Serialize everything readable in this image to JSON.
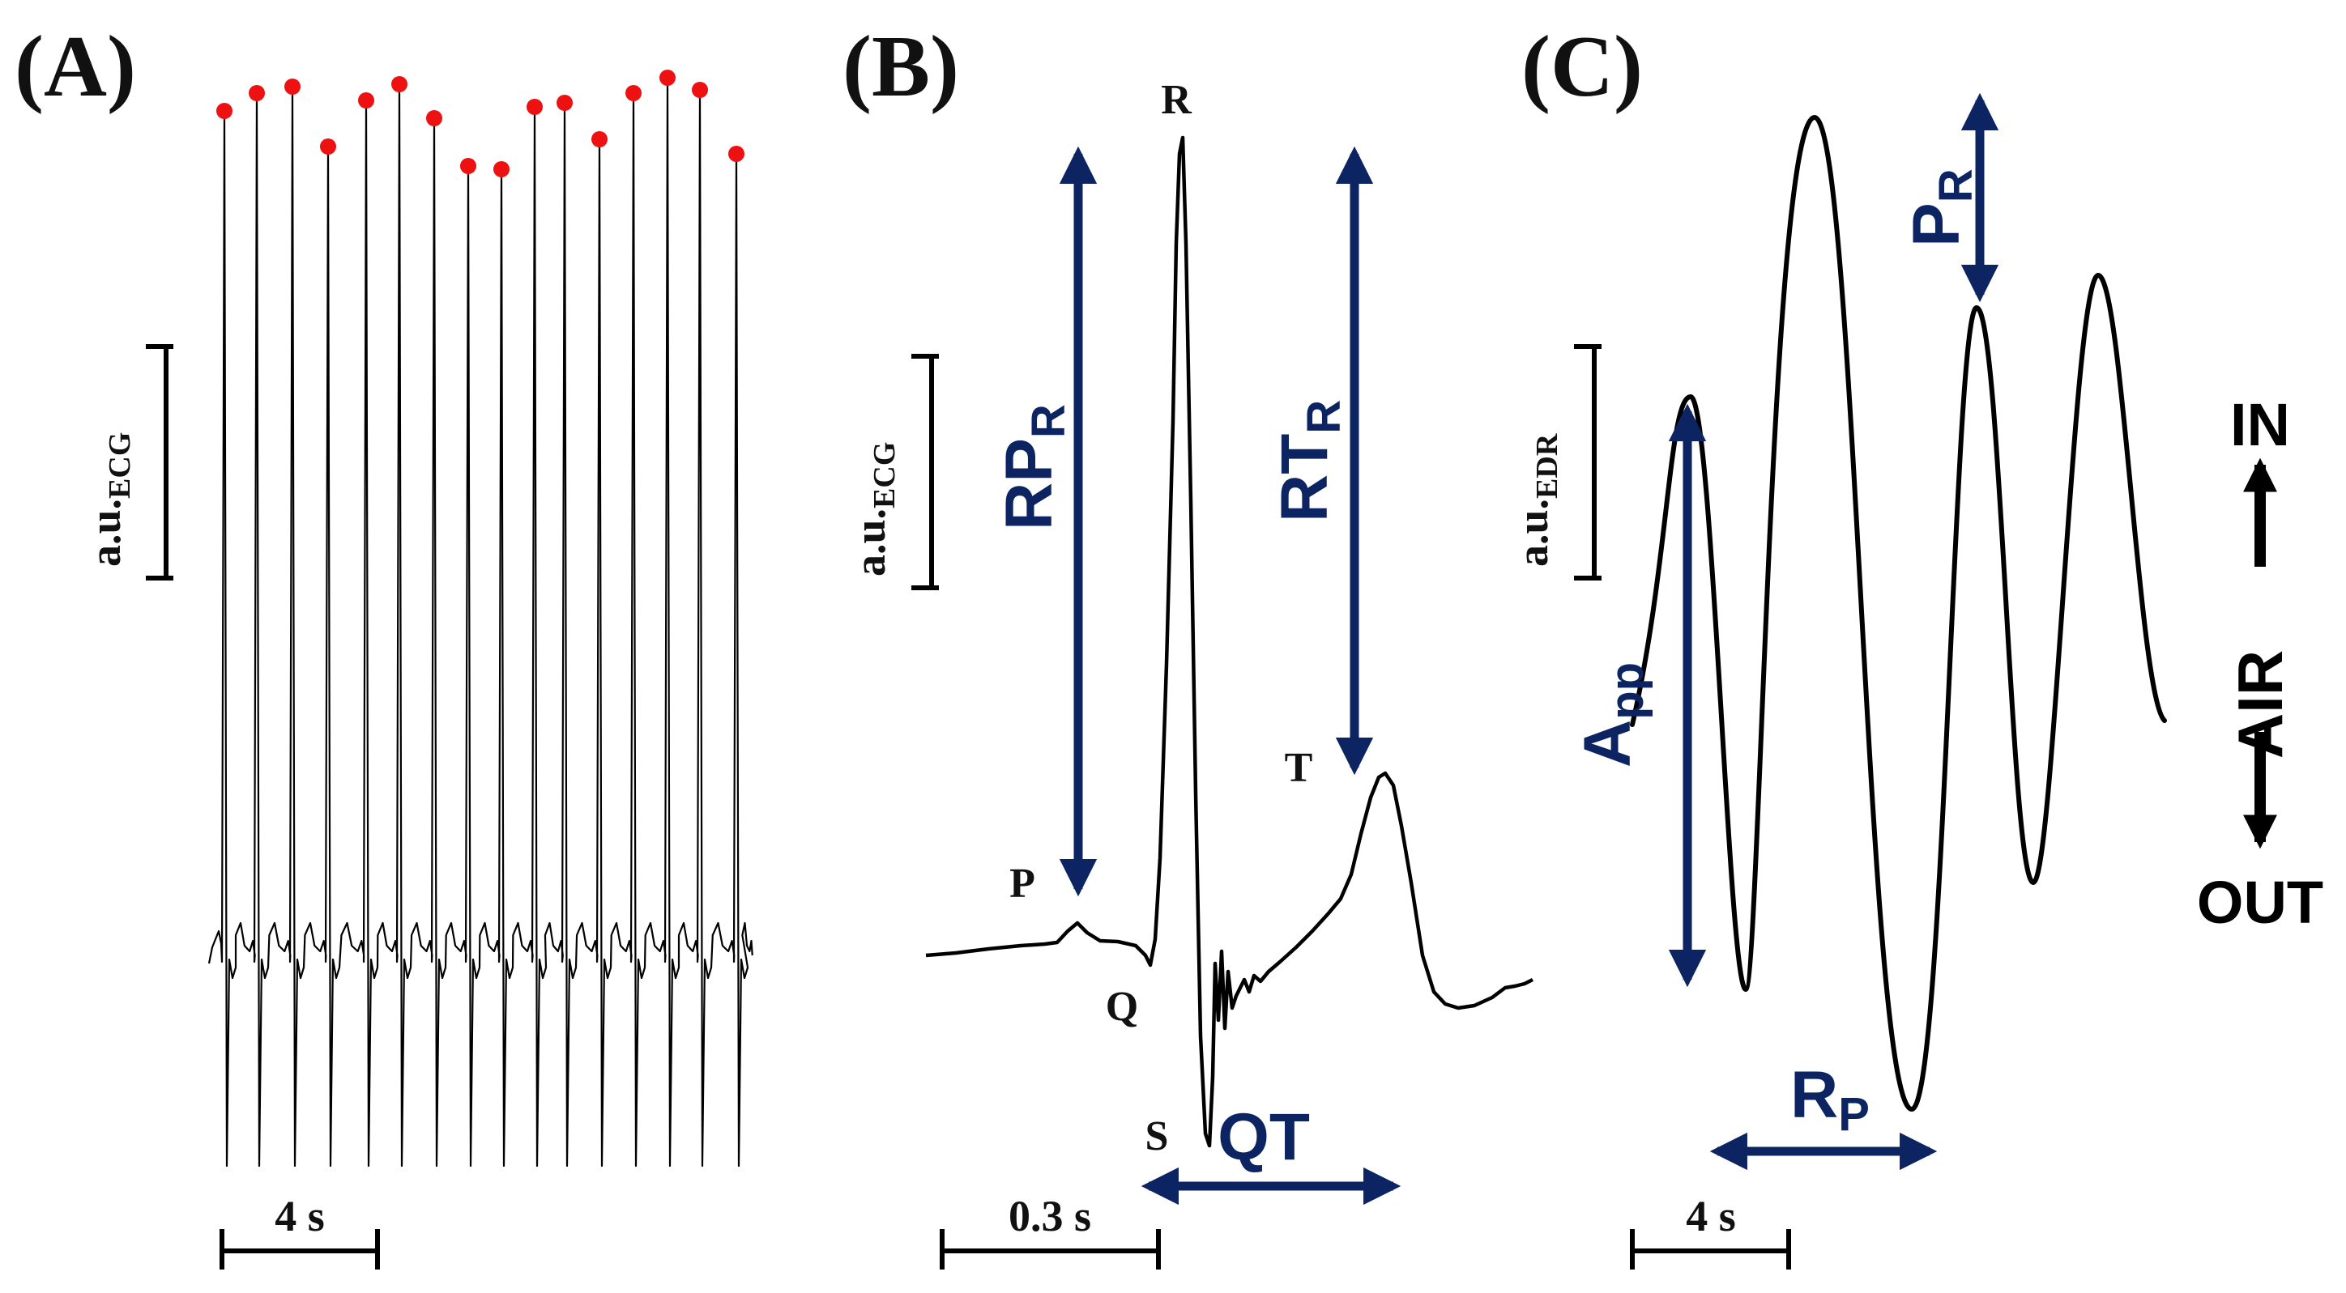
{
  "colors": {
    "signal": "#000000",
    "peak_marker": "#ee1111",
    "annotation": "#0c2461",
    "background": "#ffffff"
  },
  "panel_a": {
    "label": "(A)",
    "axis_label": "a.u.",
    "axis_subscript": "ECG",
    "time_scale": "4 s",
    "beats": 16
  },
  "panel_b": {
    "label": "(B)",
    "axis_label": "a.u.",
    "axis_subscript": "ECG",
    "time_scale": "0.3 s",
    "wave_labels": {
      "p": "P",
      "q": "Q",
      "r": "R",
      "s": "S",
      "t": "T"
    },
    "rp": {
      "main": "RP",
      "sub": "R"
    },
    "rt": {
      "main": "RT",
      "sub": "R"
    },
    "qt": "QT"
  },
  "panel_c": {
    "label": "(C)",
    "axis_label": "a.u.",
    "axis_subscript": "EDR",
    "time_scale": "4 s",
    "pr": {
      "main": "P",
      "sub": "R"
    },
    "rp": {
      "main": "R",
      "sub": "P"
    },
    "app": {
      "main": "A",
      "sub": "pp"
    },
    "air_in": "IN",
    "air": "AIR",
    "air_out": "OUT"
  }
}
